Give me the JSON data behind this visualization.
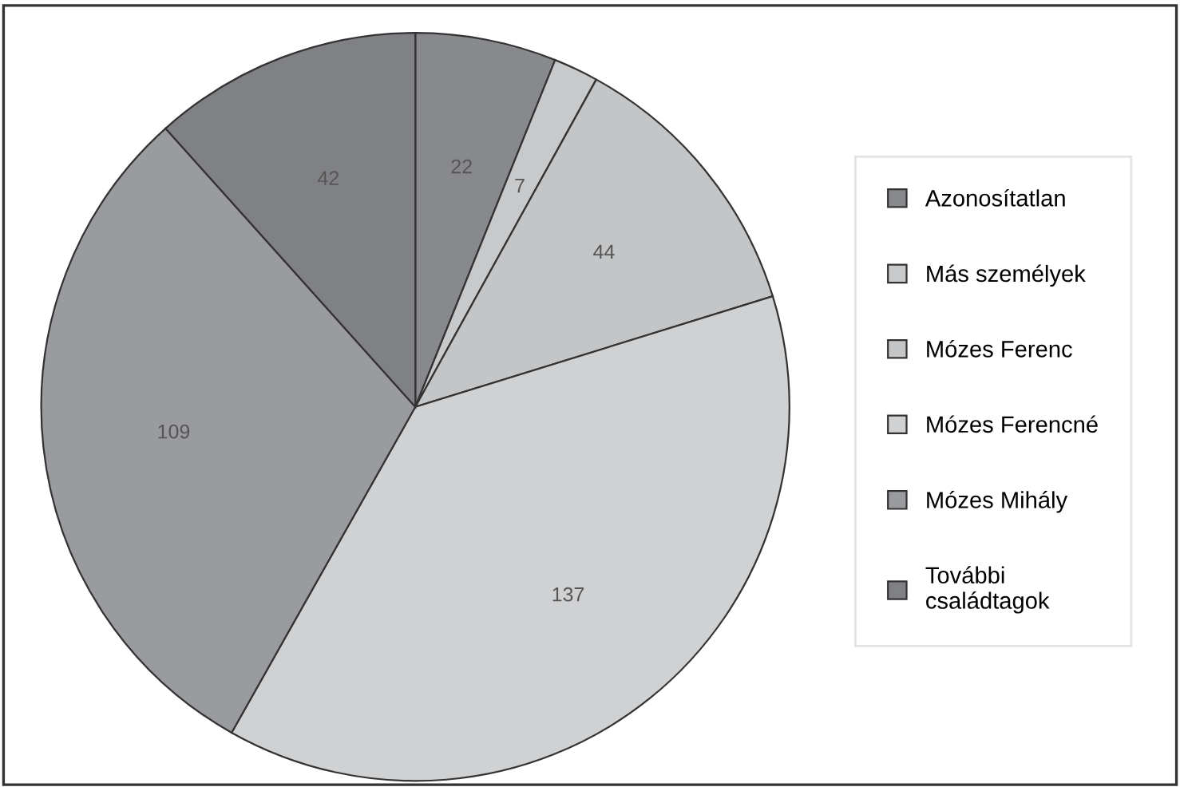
{
  "chart_data": {
    "type": "pie",
    "categories": [
      "Azonosítatlan",
      "Más személyek",
      "Mózes Ferenc",
      "Mózes Ferencné",
      "Mózes Mihály",
      "További családtagok"
    ],
    "values": [
      22,
      7,
      44,
      137,
      109,
      42
    ],
    "colors": [
      "#88898c",
      "#c8c9cb",
      "#c4c5c7",
      "#d0d1d3",
      "#9a9b9e",
      "#808184"
    ],
    "data_labels": true,
    "legend": "right"
  }
}
